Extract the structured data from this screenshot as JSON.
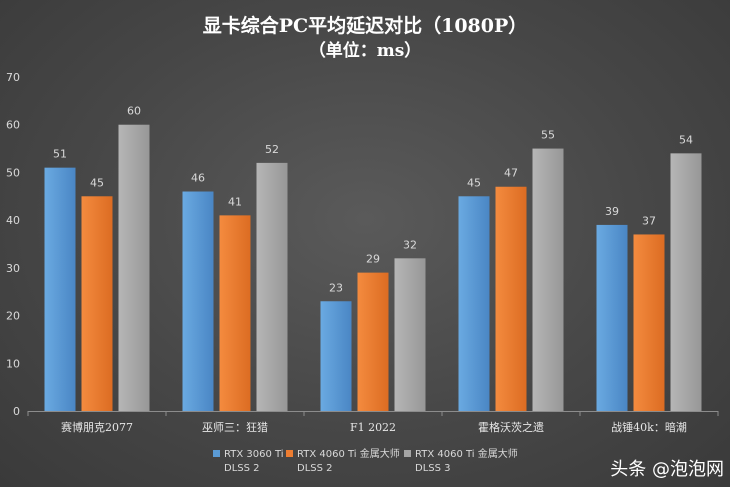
{
  "chart_data": {
    "type": "bar",
    "title": "显卡综合PC平均延迟对比（1080P）",
    "subtitle": "（单位：ms）",
    "categories": [
      "赛博朋克2077",
      "巫师三：狂猎",
      "F1 2022",
      "霍格沃茨之遗",
      "战锤40k：暗潮"
    ],
    "series": [
      {
        "name": "RTX 3060 Ti DLSS 2",
        "name_lines": [
          "RTX 3060 Ti",
          "DLSS 2"
        ],
        "color": "#5b9bd5",
        "values": [
          51,
          46,
          23,
          45,
          39
        ]
      },
      {
        "name": "RTX 4060 Ti 金属大师 DLSS 2",
        "name_lines": [
          "RTX 4060 Ti 金属大师",
          "DLSS 2"
        ],
        "color": "#ed7d31",
        "values": [
          45,
          41,
          29,
          47,
          37
        ]
      },
      {
        "name": "RTX 4060 Ti 金属大师 DLSS 3",
        "name_lines": [
          "RTX 4060 Ti 金属大师",
          "DLSS 3"
        ],
        "color": "#a5a5a5",
        "values": [
          60,
          52,
          32,
          55,
          54
        ]
      }
    ],
    "ylim": [
      0,
      70
    ],
    "yticks": [
      0,
      10,
      20,
      30,
      40,
      50,
      60,
      70
    ],
    "grid": false,
    "legend_position": "bottom",
    "data_labels": true
  },
  "watermark": "头条 @泡泡网"
}
